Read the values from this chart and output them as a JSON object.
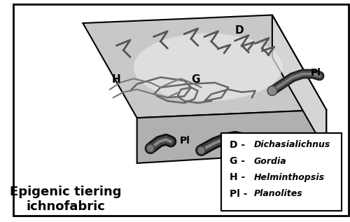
{
  "title": "Epigenic tiering\nichnofabric",
  "legend_entries": [
    {
      "label": "D",
      "name": "Dichasialichnus"
    },
    {
      "label": "G",
      "name": "Gordia"
    },
    {
      "label": "H",
      "name": "Helminthopsis"
    },
    {
      "label": "Pl",
      "name": "Planolites"
    }
  ],
  "bg_color": "#ffffff",
  "border_color": "#000000",
  "title_fontsize": 13,
  "legend_fontsize": 9,
  "label_fontsize": 11,
  "label_small_fontsize": 10
}
